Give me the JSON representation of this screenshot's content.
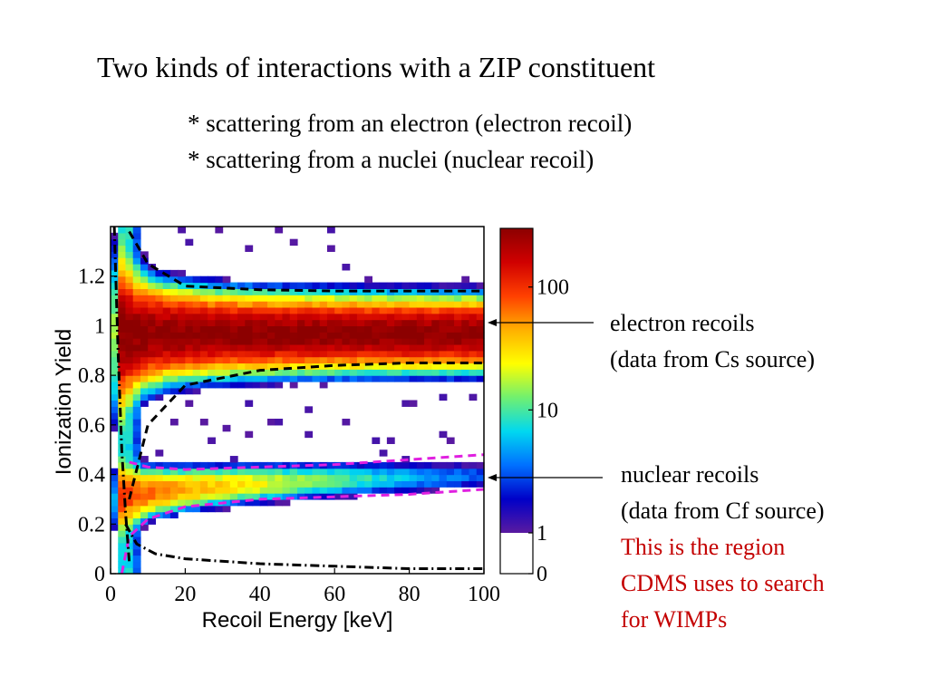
{
  "slide": {
    "title": "Two kinds of interactions with a ZIP constituent",
    "bullets": [
      "* scattering from an electron (electron recoil)",
      "* scattering from a nuclei (nuclear recoil)"
    ],
    "annotations": {
      "electron": [
        "electron recoils",
        "(data from Cs source)"
      ],
      "nuclear": [
        "nuclear recoils",
        "(data from Cf source)"
      ],
      "region": [
        "This is the region",
        "CDMS uses to search",
        "for WIMPs"
      ]
    },
    "colors": {
      "region_text": "#c40000",
      "electron_boundary": "#000000",
      "nuclear_boundary": "#e020e0"
    }
  },
  "chart_data": {
    "type": "heatmap",
    "xlabel": "Recoil Energy [keV]",
    "ylabel": "Ionization Yield",
    "xlim": [
      0,
      100
    ],
    "ylim": [
      0,
      1.4
    ],
    "xticks": [
      0,
      20,
      40,
      60,
      80,
      100
    ],
    "xtick_labels": [
      "0",
      "20",
      "40",
      "60",
      "80",
      "100"
    ],
    "yticks": [
      0,
      0.2,
      0.4,
      0.6,
      0.8,
      1,
      1.2
    ],
    "ytick_labels": [
      "0",
      "0.2",
      "0.4",
      "0.6",
      "0.8",
      "1",
      "1.2"
    ],
    "bands": [
      {
        "name": "electron recoils",
        "yield_center": 0.97,
        "peak_counts": 300
      },
      {
        "name": "nuclear recoils",
        "yield_center": 0.33,
        "peak_counts": 100
      }
    ],
    "boundary_lines": [
      {
        "style": "dashed",
        "color": "#000000",
        "x": [
          5,
          10,
          20,
          40,
          60,
          80,
          100
        ],
        "y": [
          1.38,
          1.25,
          1.16,
          1.145,
          1.14,
          1.14,
          1.14
        ]
      },
      {
        "style": "dashed",
        "color": "#000000",
        "x": [
          5,
          10,
          20,
          40,
          60,
          80,
          100
        ],
        "y": [
          0.3,
          0.6,
          0.76,
          0.82,
          0.84,
          0.85,
          0.85
        ]
      },
      {
        "style": "dashed",
        "color": "#e020e0",
        "x": [
          5,
          10,
          20,
          40,
          60,
          80,
          100
        ],
        "y": [
          0.45,
          0.43,
          0.42,
          0.43,
          0.44,
          0.46,
          0.48
        ]
      },
      {
        "style": "dashed",
        "color": "#e020e0",
        "x": [
          3,
          5,
          10,
          20,
          40,
          60,
          80,
          100
        ],
        "y": [
          0.0,
          0.15,
          0.22,
          0.27,
          0.3,
          0.31,
          0.32,
          0.34
        ]
      },
      {
        "style": "dash-dot",
        "color": "#000000",
        "x": [
          4,
          7,
          12,
          20,
          40,
          60,
          80,
          100
        ],
        "y": [
          0.2,
          0.12,
          0.08,
          0.06,
          0.04,
          0.03,
          0.02,
          0.02
        ]
      },
      {
        "style": "dash-dot",
        "color": "#000000",
        "x": [
          1,
          2,
          3,
          4,
          5
        ],
        "y": [
          1.4,
          0.9,
          0.5,
          0.25,
          0.05
        ]
      }
    ],
    "colorbar": {
      "scale": "log",
      "tick_labels": [
        "0",
        "1",
        "10",
        "100"
      ],
      "colors": [
        "#ffffff",
        "#5a1aa0",
        "#0000c8",
        "#0070ff",
        "#00d8f0",
        "#70f070",
        "#ffff00",
        "#ffb000",
        "#ff4000",
        "#d00000",
        "#8c0000"
      ]
    }
  }
}
